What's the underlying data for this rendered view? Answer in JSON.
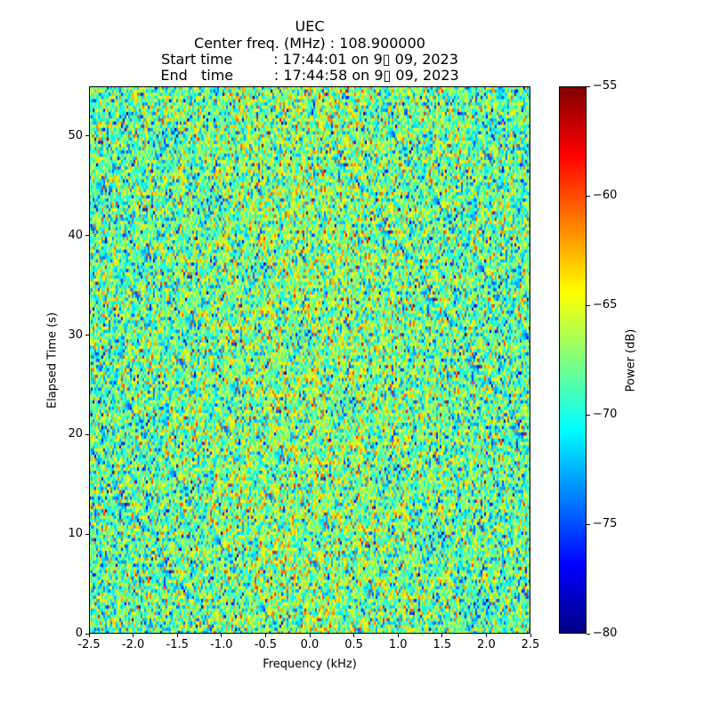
{
  "chart_data": {
    "type": "heatmap",
    "title_lines": [
      "UEC",
      "Center freq. (MHz) : 108.900000",
      "Start time         : 17:44:01 on 9▯ 09, 2023",
      "End   time         : 17:44:58 on 9▯ 09, 2023"
    ],
    "xlabel": "Frequency (kHz)",
    "ylabel": "Elapsed Time (s)",
    "xlim": [
      -2.5,
      2.5
    ],
    "ylim": [
      0,
      55
    ],
    "xticks": [
      "-2.5",
      "-2.0",
      "-1.5",
      "-1.0",
      "-0.5",
      "0.0",
      "0.5",
      "1.0",
      "1.5",
      "2.0",
      "2.5"
    ],
    "xtick_values": [
      -2.5,
      -2.0,
      -1.5,
      -1.0,
      -0.5,
      0.0,
      0.5,
      1.0,
      1.5,
      2.0,
      2.5
    ],
    "yticks": [
      "0",
      "10",
      "20",
      "30",
      "40",
      "50"
    ],
    "ytick_values": [
      0,
      10,
      20,
      30,
      40,
      50
    ],
    "colorbar": {
      "label": "Power (dB)",
      "range": [
        -80,
        -55
      ],
      "ticks": [
        "−80",
        "−75",
        "−70",
        "−65",
        "−60",
        "−55"
      ],
      "tick_values": [
        -80,
        -75,
        -70,
        -65,
        -60,
        -55
      ],
      "colormap": "jet"
    },
    "data_description_values": {
      "mean_power_db": -68,
      "std_power_db": 3.5
    },
    "grid": false
  }
}
